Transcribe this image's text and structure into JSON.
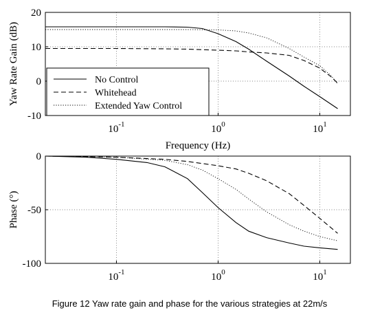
{
  "caption": "Figure 12  Yaw rate gain and phase for the various strategies at 22m/s",
  "chart_data": [
    {
      "type": "line",
      "xscale": "log",
      "xlim": [
        0.02,
        20
      ],
      "ylim": [
        -10,
        20
      ],
      "ylabel": "Yaw Rate Gain (dB)",
      "xlabel": "Frequency (Hz)",
      "x_ticks": [
        0.1,
        1,
        10
      ],
      "x_tick_labels": [
        {
          "base": "10",
          "exp": "-1"
        },
        {
          "base": "10",
          "exp": "0"
        },
        {
          "base": "10",
          "exp": "1"
        }
      ],
      "y_ticks": [
        20,
        10,
        0,
        -10
      ],
      "y_tick_labels": [
        "20",
        "10",
        "0",
        "-10"
      ],
      "grid": true,
      "legend": "bottom-left",
      "series": [
        {
          "name": "No Control",
          "style": "solid",
          "x": [
            0.02,
            0.1,
            0.3,
            0.5,
            0.7,
            1.0,
            1.5,
            2.0,
            3.0,
            5.0,
            7.0,
            10.0,
            15.0
          ],
          "y": [
            15.8,
            15.8,
            15.8,
            15.7,
            15.3,
            13.8,
            11.5,
            9.3,
            5.8,
            1.5,
            -1.5,
            -4.5,
            -8.0
          ]
        },
        {
          "name": "Whitehead",
          "style": "dashed",
          "x": [
            0.02,
            0.1,
            0.3,
            0.5,
            1.0,
            1.5,
            2.0,
            3.0,
            5.0,
            7.0,
            10.0,
            13.0,
            15.0
          ],
          "y": [
            9.5,
            9.5,
            9.4,
            9.3,
            9.0,
            8.8,
            8.5,
            8.2,
            7.5,
            6.0,
            3.8,
            1.2,
            -0.6
          ]
        },
        {
          "name": "Extended Yaw Control",
          "style": "dotted",
          "x": [
            0.02,
            0.1,
            0.3,
            0.5,
            1.0,
            1.5,
            2.0,
            3.0,
            5.0,
            7.0,
            10.0,
            13.0,
            15.0
          ],
          "y": [
            15.0,
            15.0,
            15.0,
            15.0,
            14.9,
            14.6,
            14.0,
            12.6,
            9.5,
            7.0,
            4.5,
            1.5,
            -0.8
          ]
        }
      ]
    },
    {
      "type": "line",
      "xscale": "log",
      "xlim": [
        0.02,
        20
      ],
      "ylim": [
        -100,
        0
      ],
      "ylabel": "Phase (°)",
      "xlabel": "",
      "x_ticks": [
        0.1,
        1,
        10
      ],
      "x_tick_labels": [
        {
          "base": "10",
          "exp": "-1"
        },
        {
          "base": "10",
          "exp": "0"
        },
        {
          "base": "10",
          "exp": "1"
        }
      ],
      "y_ticks": [
        0,
        -50,
        -100
      ],
      "y_tick_labels": [
        "0",
        "-50",
        "-100"
      ],
      "grid": true,
      "series": [
        {
          "name": "No Control",
          "style": "solid",
          "x": [
            0.02,
            0.05,
            0.1,
            0.2,
            0.3,
            0.5,
            0.7,
            1.0,
            1.5,
            2.0,
            3.0,
            5.0,
            7.0,
            10.0,
            15.0
          ],
          "y": [
            0,
            -1,
            -3,
            -6,
            -10,
            -21,
            -34,
            -48,
            -62,
            -70,
            -76,
            -81,
            -84,
            -85.5,
            -87
          ]
        },
        {
          "name": "Whitehead",
          "style": "dashed",
          "x": [
            0.02,
            0.1,
            0.3,
            0.5,
            1.0,
            1.5,
            2.0,
            3.0,
            5.0,
            7.0,
            10.0,
            15.0
          ],
          "y": [
            0,
            -1,
            -3,
            -5,
            -9,
            -12,
            -16,
            -23,
            -35,
            -46,
            -58,
            -72
          ]
        },
        {
          "name": "Extended Yaw Control",
          "style": "dotted",
          "x": [
            0.02,
            0.1,
            0.3,
            0.5,
            0.7,
            1.0,
            1.5,
            2.0,
            3.0,
            5.0,
            7.0,
            10.0,
            15.0
          ],
          "y": [
            0,
            -1,
            -4,
            -8,
            -13,
            -21,
            -31,
            -40,
            -52,
            -64,
            -70,
            -75,
            -79
          ]
        }
      ]
    }
  ]
}
